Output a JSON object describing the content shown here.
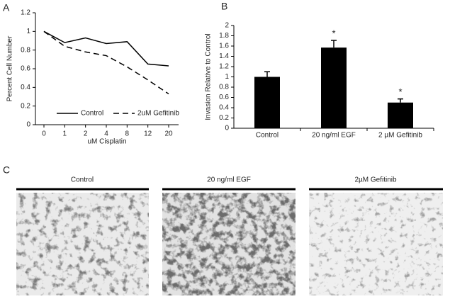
{
  "chart_data": [
    {
      "type": "line",
      "panel_label": "A",
      "y_label": "Percent Cell Number",
      "x_label": "uM Cisplatin",
      "categories": [
        "0",
        "1",
        "2",
        "4",
        "8",
        "12",
        "20"
      ],
      "series": [
        {
          "name": "Control",
          "color": "#000000",
          "dash": "none",
          "values": [
            1,
            0.88,
            0.93,
            0.87,
            0.89,
            0.65,
            0.63
          ]
        },
        {
          "name": "2uM Gefitinib",
          "color": "#000000",
          "dash": "8,5",
          "values": [
            1,
            0.84,
            0.78,
            0.74,
            0.62,
            0.48,
            0.33
          ]
        }
      ],
      "ylim": [
        0,
        1.2
      ],
      "yticks": [
        0,
        0.2,
        0.4,
        0.6,
        0.8,
        1,
        1.2
      ],
      "legend": "bottom"
    },
    {
      "type": "bar",
      "panel_label": "B",
      "y_label": "Invasion Relative to Control",
      "categories": [
        "Control",
        "20 ng/ml EGF",
        "2 µM Gefitinib"
      ],
      "values": [
        1,
        1.57,
        0.5
      ],
      "errors": [
        0.1,
        0.14,
        0.07
      ],
      "significance": [
        null,
        "*",
        "*"
      ],
      "color": "#000000",
      "ylim": [
        0,
        2
      ],
      "yticks": [
        0,
        0.2,
        0.4,
        0.6,
        0.8,
        1,
        1.2,
        1.4,
        1.6,
        1.8,
        2
      ]
    }
  ],
  "panel_c": {
    "label": "C",
    "titles": [
      "Control",
      "20 ng/ml EGF",
      "2µM Gefitinib"
    ]
  }
}
